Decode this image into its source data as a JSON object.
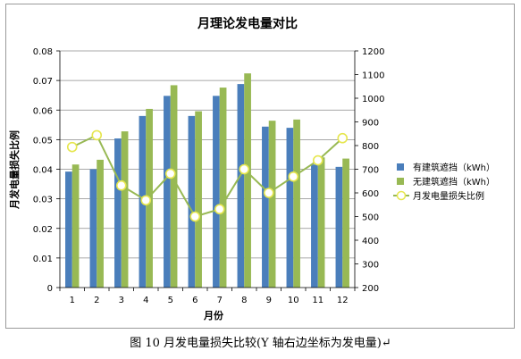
{
  "chart_data": {
    "type": "bar",
    "title": "月理论发电量对比",
    "xlabel": "月份",
    "ylabel": "月发电量损失比例",
    "categories": [
      "1",
      "2",
      "3",
      "4",
      "5",
      "6",
      "7",
      "8",
      "9",
      "10",
      "11",
      "12"
    ],
    "y_left": {
      "min": 0,
      "max": 0.08,
      "ticks": [
        "0",
        "0.01",
        "0.02",
        "0.03",
        "0.04",
        "0.05",
        "0.06",
        "0.07",
        "0.08"
      ]
    },
    "y_right": {
      "min": 200,
      "max": 1200,
      "ticks": [
        "200",
        "300",
        "400",
        "500",
        "600",
        "700",
        "800",
        "900",
        "1000",
        "1100",
        "1200"
      ]
    },
    "series": [
      {
        "name": "有建筑遮挡（kWh）",
        "type": "bar",
        "axis": "right",
        "color": "#4a7ebb",
        "values": [
          690,
          700,
          830,
          925,
          1010,
          925,
          1010,
          1060,
          880,
          875,
          720,
          710
        ]
      },
      {
        "name": "无建筑遮挡（kWh）",
        "type": "bar",
        "axis": "right",
        "color": "#98b954",
        "values": [
          720,
          740,
          860,
          955,
          1055,
          945,
          1045,
          1105,
          905,
          910,
          750,
          745
        ]
      },
      {
        "name": "月发电量损失比例",
        "type": "line",
        "axis": "left",
        "color": "#98b954",
        "marker_color": "#e6e64d",
        "values": [
          0.0475,
          0.0515,
          0.0345,
          0.0295,
          0.0385,
          0.024,
          0.0265,
          0.04,
          0.032,
          0.0375,
          0.043,
          0.0505
        ]
      }
    ],
    "legend_position": "right",
    "grid": true
  },
  "caption": "图 10   月发电量损失比较(Y 轴右边坐标为发电量)↵"
}
